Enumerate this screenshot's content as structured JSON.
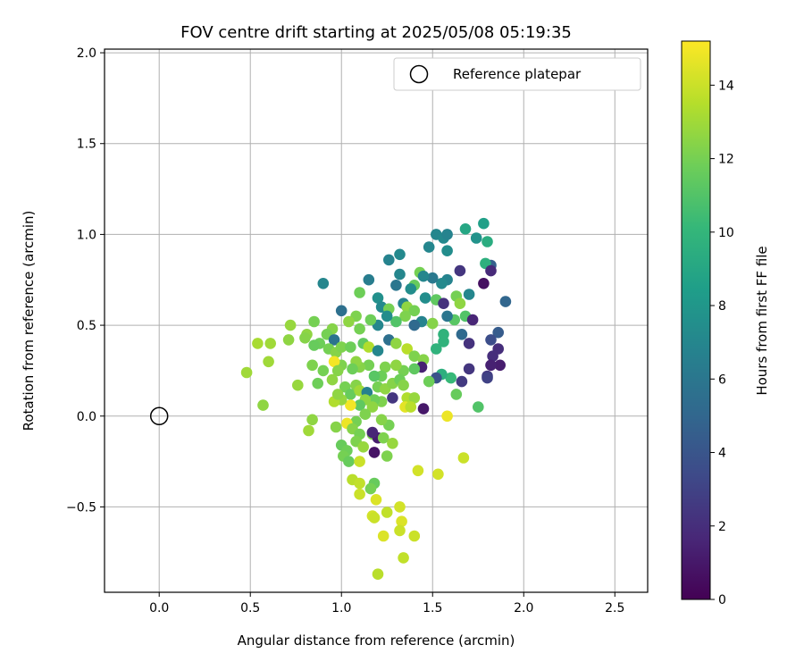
{
  "chart_data": {
    "type": "scatter",
    "title": "FOV centre drift starting at 2025/05/08 05:19:35",
    "xlabel": "Angular distance from reference (arcmin)",
    "ylabel": "Rotation from reference (arcmin)",
    "colorbar_label": "Hours from first FF file",
    "xlim": [
      -0.3,
      2.68
    ],
    "ylim": [
      -0.97,
      2.02
    ],
    "xticks": [
      0.0,
      0.5,
      1.0,
      1.5,
      2.0,
      2.5
    ],
    "yticks": [
      -0.5,
      0.0,
      0.5,
      1.0,
      1.5,
      2.0
    ],
    "xtick_labels": [
      "0.0",
      "0.5",
      "1.0",
      "1.5",
      "2.0",
      "2.5"
    ],
    "ytick_labels": [
      "−0.5",
      "0.0",
      "0.5",
      "1.0",
      "1.5",
      "2.0"
    ],
    "colorbar_range": [
      0,
      15.2
    ],
    "colorbar_ticks": [
      0,
      2,
      4,
      6,
      8,
      10,
      12,
      14
    ],
    "colorbar_tick_labels": [
      "0",
      "2",
      "4",
      "6",
      "8",
      "10",
      "12",
      "14"
    ],
    "colormap": "viridis",
    "grid": true,
    "legend": {
      "position": "upper-right",
      "entries": [
        "Reference platepar"
      ]
    },
    "reference": {
      "x": 0.0,
      "y": 0.0
    },
    "points": [
      [
        1.52,
        1.0,
        7.0
      ],
      [
        1.56,
        0.98,
        7.2
      ],
      [
        1.58,
        1.0,
        6.8
      ],
      [
        1.68,
        1.03,
        9.0
      ],
      [
        1.78,
        1.06,
        8.6
      ],
      [
        1.8,
        0.96,
        9.4
      ],
      [
        1.74,
        0.98,
        7.8
      ],
      [
        1.58,
        0.91,
        7.4
      ],
      [
        1.48,
        0.93,
        7.0
      ],
      [
        1.32,
        0.89,
        7.2
      ],
      [
        1.26,
        0.86,
        6.8
      ],
      [
        1.15,
        0.75,
        6.4
      ],
      [
        1.32,
        0.78,
        7.0
      ],
      [
        1.43,
        0.79,
        12.0
      ],
      [
        1.82,
        0.83,
        4.6
      ],
      [
        1.79,
        0.84,
        9.6
      ],
      [
        1.65,
        0.8,
        2.4
      ],
      [
        1.82,
        0.8,
        1.8
      ],
      [
        1.78,
        0.73,
        0.6
      ],
      [
        1.7,
        0.67,
        7.0
      ],
      [
        1.9,
        0.63,
        5.0
      ],
      [
        1.58,
        0.75,
        6.8
      ],
      [
        1.55,
        0.73,
        7.2
      ],
      [
        1.5,
        0.76,
        6.2
      ],
      [
        1.45,
        0.77,
        7.0
      ],
      [
        1.4,
        0.72,
        11.6
      ],
      [
        1.38,
        0.7,
        7.4
      ],
      [
        1.3,
        0.72,
        6.0
      ],
      [
        1.2,
        0.65,
        7.6
      ],
      [
        1.1,
        0.68,
        11.8
      ],
      [
        0.9,
        0.73,
        7.0
      ],
      [
        1.0,
        0.58,
        5.6
      ],
      [
        1.22,
        0.6,
        7.2
      ],
      [
        1.26,
        0.59,
        12.0
      ],
      [
        1.34,
        0.62,
        6.8
      ],
      [
        1.36,
        0.6,
        12.6
      ],
      [
        1.4,
        0.58,
        12.0
      ],
      [
        1.46,
        0.65,
        7.4
      ],
      [
        1.52,
        0.64,
        11.4
      ],
      [
        1.56,
        0.62,
        2.2
      ],
      [
        1.63,
        0.66,
        12.0
      ],
      [
        1.65,
        0.62,
        12.6
      ],
      [
        1.68,
        0.55,
        11.0
      ],
      [
        1.72,
        0.53,
        1.6
      ],
      [
        1.62,
        0.53,
        11.2
      ],
      [
        1.58,
        0.55,
        6.0
      ],
      [
        1.5,
        0.51,
        12.4
      ],
      [
        1.44,
        0.52,
        6.8
      ],
      [
        1.4,
        0.5,
        5.2
      ],
      [
        1.35,
        0.55,
        12.2
      ],
      [
        1.3,
        0.52,
        11.0
      ],
      [
        1.25,
        0.55,
        7.4
      ],
      [
        1.2,
        0.5,
        7.0
      ],
      [
        1.16,
        0.53,
        11.8
      ],
      [
        1.08,
        0.55,
        12.2
      ],
      [
        1.04,
        0.52,
        12.6
      ],
      [
        1.1,
        0.48,
        12.0
      ],
      [
        0.95,
        0.48,
        12.4
      ],
      [
        0.92,
        0.45,
        12.0
      ],
      [
        0.96,
        0.42,
        5.8
      ],
      [
        0.88,
        0.4,
        11.8
      ],
      [
        0.81,
        0.45,
        12.6
      ],
      [
        0.72,
        0.5,
        12.8
      ],
      [
        0.85,
        0.52,
        12.0
      ],
      [
        0.71,
        0.42,
        12.6
      ],
      [
        0.8,
        0.43,
        12.4
      ],
      [
        0.85,
        0.39,
        11.6
      ],
      [
        0.93,
        0.37,
        12.0
      ],
      [
        0.97,
        0.35,
        12.4
      ],
      [
        1.0,
        0.38,
        12.2
      ],
      [
        1.05,
        0.38,
        11.8
      ],
      [
        1.12,
        0.4,
        11.4
      ],
      [
        1.15,
        0.38,
        13.4
      ],
      [
        1.2,
        0.36,
        7.0
      ],
      [
        1.26,
        0.42,
        5.6
      ],
      [
        1.3,
        0.4,
        12.6
      ],
      [
        1.36,
        0.37,
        13.6
      ],
      [
        1.4,
        0.33,
        12.2
      ],
      [
        1.45,
        0.31,
        12.4
      ],
      [
        1.52,
        0.37,
        9.8
      ],
      [
        1.56,
        0.41,
        9.8
      ],
      [
        1.56,
        0.45,
        9.8
      ],
      [
        1.66,
        0.45,
        5.2
      ],
      [
        1.7,
        0.4,
        2.2
      ],
      [
        1.86,
        0.46,
        4.4
      ],
      [
        1.82,
        0.42,
        3.6
      ],
      [
        1.86,
        0.37,
        2.0
      ],
      [
        1.83,
        0.33,
        2.0
      ],
      [
        1.87,
        0.28,
        1.2
      ],
      [
        1.82,
        0.28,
        1.4
      ],
      [
        1.8,
        0.22,
        2.6
      ],
      [
        1.8,
        0.21,
        3.0
      ],
      [
        1.7,
        0.26,
        2.4
      ],
      [
        1.66,
        0.19,
        2.6
      ],
      [
        1.6,
        0.21,
        10.2
      ],
      [
        1.55,
        0.23,
        9.6
      ],
      [
        1.52,
        0.21,
        3.8
      ],
      [
        1.48,
        0.19,
        11.8
      ],
      [
        1.44,
        0.27,
        1.4
      ],
      [
        1.4,
        0.26,
        11.4
      ],
      [
        1.34,
        0.25,
        12.0
      ],
      [
        1.3,
        0.28,
        12.6
      ],
      [
        1.24,
        0.27,
        12.2
      ],
      [
        1.22,
        0.22,
        11.8
      ],
      [
        1.18,
        0.22,
        11.2
      ],
      [
        1.15,
        0.28,
        12.0
      ],
      [
        1.1,
        0.27,
        12.4
      ],
      [
        1.08,
        0.3,
        12.6
      ],
      [
        1.06,
        0.26,
        11.8
      ],
      [
        1.0,
        0.28,
        12.2
      ],
      [
        0.96,
        0.3,
        15.0
      ],
      [
        0.98,
        0.25,
        12.4
      ],
      [
        0.9,
        0.25,
        12.0
      ],
      [
        0.84,
        0.28,
        12.2
      ],
      [
        0.87,
        0.18,
        11.8
      ],
      [
        0.95,
        0.2,
        12.6
      ],
      [
        1.02,
        0.16,
        12.0
      ],
      [
        1.05,
        0.12,
        11.6
      ],
      [
        1.08,
        0.17,
        12.4
      ],
      [
        1.1,
        0.14,
        13.0
      ],
      [
        1.14,
        0.13,
        6.6
      ],
      [
        1.2,
        0.16,
        12.0
      ],
      [
        1.24,
        0.15,
        12.6
      ],
      [
        1.28,
        0.18,
        12.4
      ],
      [
        1.32,
        0.2,
        11.8
      ],
      [
        1.34,
        0.17,
        12.4
      ],
      [
        1.28,
        0.1,
        2.4
      ],
      [
        1.22,
        0.08,
        12.2
      ],
      [
        1.18,
        0.09,
        11.8
      ],
      [
        1.13,
        0.09,
        12.6
      ],
      [
        1.1,
        0.06,
        11.4
      ],
      [
        1.05,
        0.06,
        15.0
      ],
      [
        1.0,
        0.09,
        12.8
      ],
      [
        0.96,
        0.08,
        13.4
      ],
      [
        0.98,
        0.12,
        12.6
      ],
      [
        1.36,
        0.1,
        13.4
      ],
      [
        1.4,
        0.1,
        12.8
      ],
      [
        1.35,
        0.05,
        14.6
      ],
      [
        1.38,
        0.05,
        13.6
      ],
      [
        1.45,
        0.04,
        1.0
      ],
      [
        1.58,
        0.0,
        14.8
      ],
      [
        1.75,
        0.05,
        11.0
      ],
      [
        1.63,
        0.12,
        11.6
      ],
      [
        1.17,
        0.05,
        12.6
      ],
      [
        1.13,
        0.01,
        12.2
      ],
      [
        1.08,
        -0.03,
        12.0
      ],
      [
        1.03,
        -0.04,
        14.8
      ],
      [
        0.97,
        -0.06,
        12.4
      ],
      [
        0.84,
        -0.02,
        12.6
      ],
      [
        0.82,
        -0.08,
        13.0
      ],
      [
        1.06,
        -0.07,
        12.4
      ],
      [
        1.1,
        -0.1,
        12.0
      ],
      [
        1.17,
        -0.1,
        12.2
      ],
      [
        1.2,
        -0.12,
        1.2
      ],
      [
        1.23,
        -0.12,
        12.2
      ],
      [
        1.26,
        -0.05,
        12.0
      ],
      [
        1.22,
        -0.02,
        12.4
      ],
      [
        1.17,
        -0.09,
        1.6
      ],
      [
        1.08,
        -0.14,
        12.2
      ],
      [
        1.12,
        -0.17,
        12.8
      ],
      [
        1.0,
        -0.16,
        11.6
      ],
      [
        1.03,
        -0.19,
        11.8
      ],
      [
        1.01,
        -0.22,
        12.0
      ],
      [
        1.04,
        -0.25,
        11.6
      ],
      [
        1.1,
        -0.25,
        14.0
      ],
      [
        1.18,
        -0.2,
        0.8
      ],
      [
        1.25,
        -0.22,
        12.2
      ],
      [
        1.28,
        -0.15,
        12.8
      ],
      [
        1.42,
        -0.3,
        14.2
      ],
      [
        1.53,
        -0.32,
        14.2
      ],
      [
        1.67,
        -0.23,
        14.0
      ],
      [
        1.06,
        -0.35,
        13.6
      ],
      [
        1.1,
        -0.37,
        13.8
      ],
      [
        1.18,
        -0.37,
        11.6
      ],
      [
        1.1,
        -0.43,
        14.0
      ],
      [
        1.16,
        -0.4,
        12.0
      ],
      [
        1.19,
        -0.46,
        14.4
      ],
      [
        1.32,
        -0.5,
        14.2
      ],
      [
        1.25,
        -0.53,
        13.8
      ],
      [
        1.17,
        -0.55,
        14.2
      ],
      [
        1.18,
        -0.56,
        14.0
      ],
      [
        1.33,
        -0.58,
        14.4
      ],
      [
        1.32,
        -0.63,
        14.0
      ],
      [
        1.23,
        -0.66,
        14.4
      ],
      [
        1.4,
        -0.66,
        14.0
      ],
      [
        1.34,
        -0.78,
        13.8
      ],
      [
        1.2,
        -0.87,
        13.6
      ],
      [
        0.57,
        0.06,
        12.6
      ],
      [
        0.48,
        0.24,
        13.0
      ],
      [
        0.6,
        0.3,
        13.0
      ],
      [
        0.54,
        0.4,
        13.2
      ],
      [
        0.61,
        0.4,
        13.0
      ],
      [
        0.76,
        0.17,
        12.8
      ]
    ]
  }
}
